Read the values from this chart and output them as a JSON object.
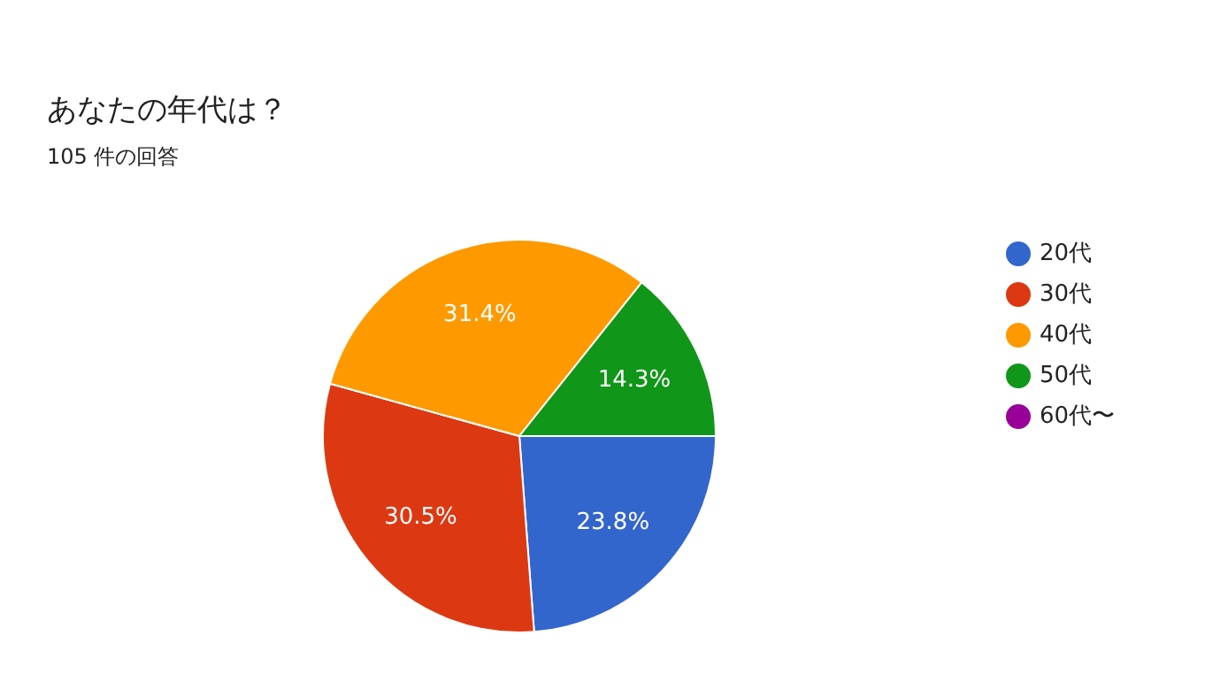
{
  "chart_data": {
    "type": "pie",
    "title": "あなたの年代は？",
    "subtitle": "105 件の回答",
    "categories": [
      "20代",
      "30代",
      "40代",
      "50代",
      "60代〜"
    ],
    "values": [
      23.8,
      30.5,
      31.4,
      14.3,
      0
    ],
    "colors": [
      "#3366cc",
      "#dc3912",
      "#ff9900",
      "#109618",
      "#990099"
    ],
    "value_labels": [
      "23.8%",
      "30.5%",
      "31.4%",
      "14.3%",
      null
    ],
    "legend": "right"
  }
}
